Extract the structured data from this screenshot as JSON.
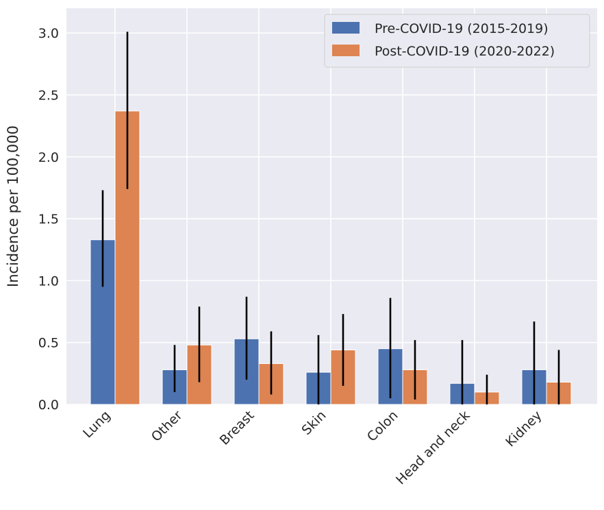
{
  "chart_data": {
    "type": "bar",
    "title": "",
    "xlabel": "",
    "ylabel": "Incidence per 100,000",
    "ylim": [
      0,
      3.2
    ],
    "yticks": [
      "0.0",
      "0.5",
      "1.0",
      "1.5",
      "2.0",
      "2.5",
      "3.0"
    ],
    "grid": true,
    "legend_position": "top-right",
    "categories": [
      "Lung",
      "Other",
      "Breast",
      "Skin",
      "Colon",
      "Head and neck",
      "Kidney"
    ],
    "series": [
      {
        "name": "Pre-COVID-19 (2015-2019)",
        "color": "#4c72b0",
        "values": [
          1.33,
          0.28,
          0.53,
          0.26,
          0.45,
          0.17,
          0.28
        ],
        "error_low": [
          0.95,
          0.1,
          0.2,
          0.0,
          0.05,
          0.0,
          0.0
        ],
        "error_high": [
          1.73,
          0.48,
          0.87,
          0.56,
          0.86,
          0.52,
          0.67
        ]
      },
      {
        "name": "Post-COVID-19 (2020-2022)",
        "color": "#dd8452",
        "values": [
          2.37,
          0.48,
          0.33,
          0.44,
          0.28,
          0.1,
          0.18
        ],
        "error_low": [
          1.74,
          0.18,
          0.08,
          0.15,
          0.04,
          0.0,
          0.0
        ],
        "error_high": [
          3.01,
          0.79,
          0.59,
          0.73,
          0.52,
          0.24,
          0.44
        ]
      }
    ]
  }
}
